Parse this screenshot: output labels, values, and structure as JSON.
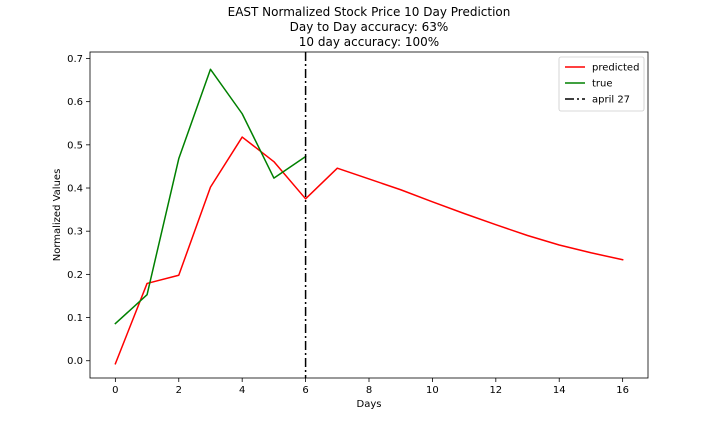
{
  "chart_data": {
    "type": "line",
    "title_lines": [
      "EAST Normalized Stock Price 10 Day Prediction",
      "Day to Day accuracy: 63%",
      "10 day accuracy: 100%"
    ],
    "xlabel": "Days",
    "ylabel": "Normalized Values",
    "xlim": [
      -0.8,
      16.8
    ],
    "ylim": [
      -0.04,
      0.715
    ],
    "xticks": [
      0,
      2,
      4,
      6,
      8,
      10,
      12,
      14,
      16
    ],
    "xtick_labels": [
      "0",
      "2",
      "4",
      "6",
      "8",
      "10",
      "12",
      "14",
      "16"
    ],
    "yticks": [
      0.0,
      0.1,
      0.2,
      0.3,
      0.4,
      0.5,
      0.6,
      0.7
    ],
    "ytick_labels": [
      "0.0",
      "0.1",
      "0.2",
      "0.3",
      "0.4",
      "0.5",
      "0.6",
      "0.7"
    ],
    "grid": false,
    "legend_position": "top-right",
    "series": [
      {
        "name": "predicted",
        "color": "#ff0000",
        "x": [
          0,
          1,
          2,
          3,
          4,
          5,
          6,
          7,
          8,
          9,
          10,
          11,
          12,
          13,
          14,
          15,
          16
        ],
        "y": [
          -0.007,
          0.179,
          0.198,
          0.402,
          0.518,
          0.461,
          0.375,
          0.446,
          0.421,
          0.396,
          0.368,
          0.341,
          0.315,
          0.29,
          0.268,
          0.25,
          0.234
        ]
      },
      {
        "name": "true",
        "color": "#008000",
        "x": [
          0,
          1,
          2,
          3,
          4,
          5,
          6
        ],
        "y": [
          0.086,
          0.153,
          0.468,
          0.675,
          0.572,
          0.423,
          0.473
        ]
      }
    ],
    "vlines": [
      {
        "name": "april 27",
        "x": 6,
        "color": "#000000",
        "style": "dash-dot"
      }
    ]
  }
}
